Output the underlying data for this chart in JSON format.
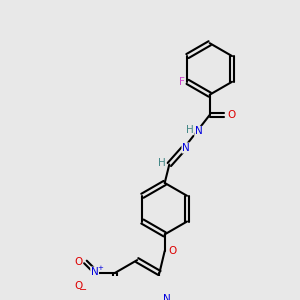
{
  "bg_color": "#e8e8e8",
  "bond_color": "#000000",
  "bond_lw": 1.5,
  "atom_colors": {
    "F": "#cc44cc",
    "N": "#0000dd",
    "O": "#dd0000",
    "H": "#448888",
    "C": "#000000"
  },
  "font_size": 7.5,
  "font_size_small": 6.5
}
